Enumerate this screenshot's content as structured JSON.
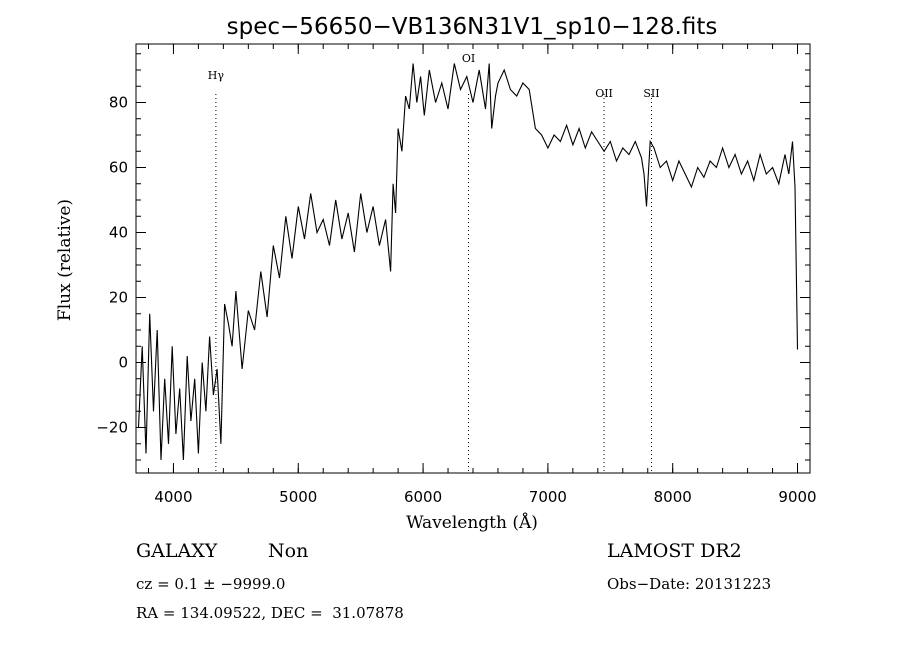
{
  "chart_data": {
    "type": "line",
    "title": "spec−56650−VB136N31V1_sp10−128.fits",
    "xlabel": "Wavelength (Å)",
    "ylabel": "Flux (relative)",
    "xlim": [
      3700,
      9100
    ],
    "ylim": [
      -34,
      98
    ],
    "xticks": [
      4000,
      5000,
      6000,
      7000,
      8000,
      9000
    ],
    "yticks": [
      -20,
      0,
      20,
      40,
      60,
      80
    ],
    "ytick_labels": [
      "−20",
      "0",
      "20",
      "40",
      "60",
      "80"
    ],
    "lines": [
      {
        "label": "Hγ",
        "x": 4340
      },
      {
        "label": "OI",
        "x": 6364
      },
      {
        "label": "OII",
        "x": 7450
      },
      {
        "label": "SII",
        "x": 7830
      }
    ],
    "series": [
      {
        "x": [
          3720,
          3750,
          3780,
          3810,
          3840,
          3870,
          3900,
          3930,
          3960,
          3990,
          4020,
          4050,
          4080,
          4110,
          4140,
          4170,
          4200,
          4230,
          4260,
          4290,
          4320,
          4350,
          4380,
          4410,
          4440,
          4470,
          4500,
          4550,
          4600,
          4650,
          4700,
          4750,
          4800,
          4850,
          4900,
          4950,
          5000,
          5050,
          5100,
          5150,
          5200,
          5250,
          5300,
          5350,
          5400,
          5450,
          5500,
          5550,
          5600,
          5650,
          5700,
          5740,
          5760,
          5780,
          5800,
          5830,
          5860,
          5890,
          5920,
          5950,
          5980,
          6010,
          6050,
          6100,
          6150,
          6200,
          6250,
          6300,
          6350,
          6400,
          6450,
          6500,
          6530,
          6550,
          6580,
          6600,
          6650,
          6700,
          6750,
          6800,
          6850,
          6900,
          6950,
          7000,
          7050,
          7100,
          7150,
          7200,
          7250,
          7300,
          7350,
          7400,
          7450,
          7500,
          7550,
          7600,
          7650,
          7700,
          7750,
          7770,
          7790,
          7820,
          7850,
          7900,
          7950,
          8000,
          8050,
          8100,
          8150,
          8200,
          8250,
          8300,
          8350,
          8400,
          8450,
          8500,
          8550,
          8600,
          8650,
          8700,
          8750,
          8800,
          8850,
          8900,
          8930,
          8960,
          8980,
          9000
        ],
        "y": [
          -20,
          5,
          -28,
          15,
          -15,
          10,
          -30,
          -5,
          -25,
          5,
          -22,
          -8,
          -30,
          2,
          -18,
          -5,
          -28,
          0,
          -15,
          8,
          -10,
          -2,
          -25,
          18,
          12,
          5,
          22,
          -2,
          16,
          10,
          28,
          14,
          36,
          26,
          45,
          32,
          48,
          38,
          52,
          40,
          44,
          36,
          50,
          38,
          46,
          34,
          52,
          40,
          48,
          36,
          44,
          28,
          55,
          46,
          72,
          65,
          82,
          78,
          92,
          80,
          88,
          76,
          90,
          80,
          86,
          78,
          92,
          84,
          88,
          80,
          90,
          78,
          92,
          72,
          82,
          86,
          90,
          84,
          82,
          86,
          84,
          72,
          70,
          66,
          70,
          68,
          73,
          67,
          72,
          66,
          71,
          68,
          65,
          68,
          62,
          66,
          64,
          68,
          63,
          58,
          48,
          68,
          66,
          60,
          62,
          56,
          62,
          58,
          54,
          60,
          57,
          62,
          60,
          66,
          60,
          64,
          58,
          62,
          56,
          64,
          58,
          60,
          55,
          64,
          58,
          68,
          54,
          4
        ]
      }
    ]
  },
  "info": {
    "object_type": "GALAXY",
    "subclass": "Non",
    "survey": "LAMOST DR2",
    "cz_line": "cz = 0.1 ± −9999.0",
    "obs_date": "Obs−Date: 20131223",
    "coords": "RA = 134.09522, DEC =  31.07878"
  }
}
